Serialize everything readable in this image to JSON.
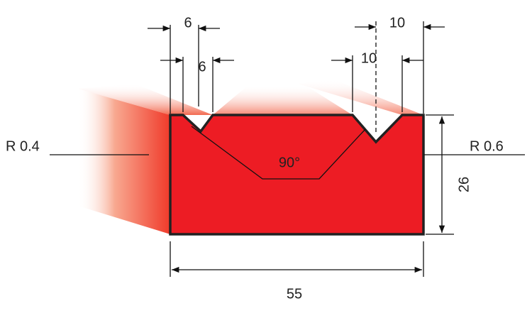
{
  "labels": {
    "left_notch_width": "6",
    "left_notch_inner": "6",
    "right_notch_width": "10",
    "right_notch_inner": "10",
    "radius_left": "R 0.4",
    "radius_right": "R 0.6",
    "angle": "90°",
    "height": "26",
    "width": "55"
  }
}
